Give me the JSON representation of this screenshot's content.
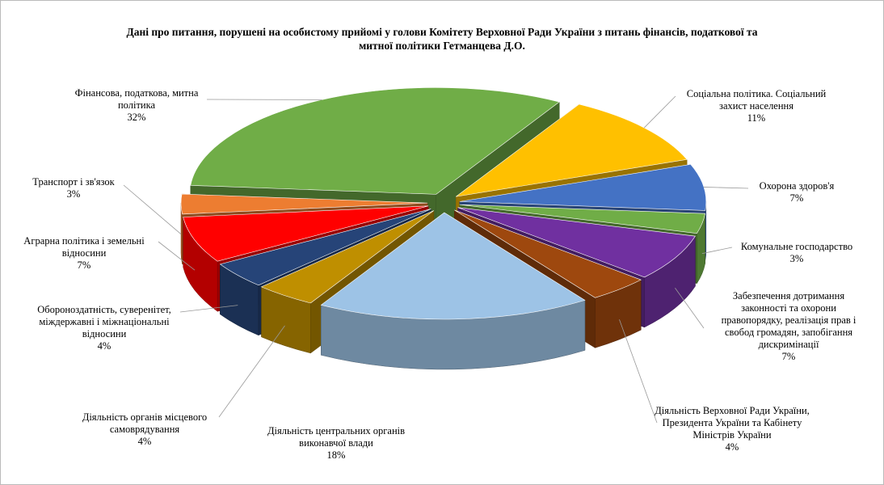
{
  "chart_data": {
    "type": "pie3d",
    "title": "Дані про питання, порушені  на особистому прийомі  у голови Комітету Верховної Ради України з питань  фінансів, податкової та митної політики Гетманцева Д.О.",
    "categories": [
      "Соціальна політика. Соціальний захист населення",
      "Охорона здоров'я",
      "Комунальне господарство",
      "Забезпечення дотримання законності та охорони правопорядку, реалізація прав і свобод громадян, запобігання дискримінації",
      "Діяльність Верховної Ради України, Президента України та Кабінету Міністрів  України",
      "Діяльність центральних органів виконавчої влади",
      "Діяльність органів місцевого самоврядування",
      "Обороноздатність, суверенітет, міждержавні і міжнаціональні відносини",
      "Аграрна політика і земельні відносини",
      "Транспорт і зв'язок",
      "Фінансова, податкова, митна політика"
    ],
    "values": [
      11,
      7,
      3,
      7,
      4,
      18,
      4,
      4,
      7,
      3,
      32
    ],
    "value_labels": [
      "11%",
      "7%",
      "3%",
      "7%",
      "4%",
      "18%",
      "4%",
      "4%",
      "7%",
      "3%",
      "32%"
    ],
    "colors": [
      "#FFC000",
      "#4472C4",
      "#70AD47",
      "#7030A0",
      "#9E480E",
      "#9DC3E6",
      "#BF8F00",
      "#264478",
      "#FF0000",
      "#ED7D31",
      "#70AD47"
    ]
  }
}
